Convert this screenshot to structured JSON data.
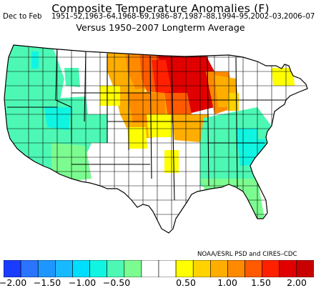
{
  "header": {
    "title": "Composite Temperature Anomalies (F)",
    "season": "Dec to Feb",
    "years": "1951–52,1963–64,1968–69,1986–87,1987–88,1994–95,2002–03,2006–07",
    "baseline": "Versus 1950–2007 Longterm Average"
  },
  "credit": "NOAA/ESRL PSD and CIRES–CDC",
  "colorbar": {
    "colors": [
      "#1a3cff",
      "#2a74ff",
      "#1e96ff",
      "#18baff",
      "#00deff",
      "#10f5e2",
      "#4cf8b4",
      "#7cfc90",
      "#ffffff",
      "#ffffff",
      "#ffff00",
      "#ffd200",
      "#ffae00",
      "#ff8a00",
      "#ff5a00",
      "#ff2000",
      "#e00000",
      "#c80000"
    ],
    "tick_labels": [
      "−2.00",
      "−1.50",
      "−1.00",
      "−0.50",
      "0.50",
      "1.00",
      "1.50",
      "2.00"
    ],
    "tick_values": [
      -2.0,
      -1.5,
      -1.0,
      -0.5,
      0.5,
      1.0,
      1.5,
      2.0
    ],
    "range": [
      -2.25,
      2.25
    ],
    "step": 0.25
  }
}
